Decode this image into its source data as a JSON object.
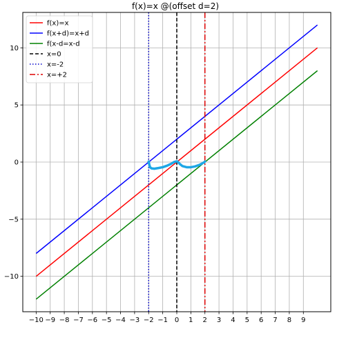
{
  "chart_data": {
    "type": "line",
    "title": "f(x)=x @(offset d=2)",
    "xlabel": "",
    "ylabel": "",
    "xlim": [
      -10.95,
      10.95
    ],
    "ylim": [
      -13.1,
      13.1
    ],
    "grid": true,
    "legend_position": "top-left",
    "xticks": [
      -10,
      -9,
      -8,
      -7,
      -6,
      -5,
      -4,
      -3,
      -2,
      -1,
      0,
      1,
      2,
      3,
      4,
      5,
      6,
      7,
      8,
      9
    ],
    "xtick_labels": [
      "−10",
      "−9",
      "−8",
      "−7",
      "−6",
      "−5",
      "−4",
      "−3",
      "−2",
      "−1",
      "0",
      "1",
      "2",
      "3",
      "4",
      "5",
      "6",
      "7",
      "8",
      "9"
    ],
    "yticks": [
      -10,
      -5,
      0,
      5,
      10
    ],
    "ytick_labels": [
      "−10",
      "−5",
      "0",
      "5",
      "10"
    ],
    "series": [
      {
        "name": "f(x)=x",
        "color": "#ff0000",
        "style": "solid",
        "x": [
          -10,
          10
        ],
        "y": [
          -10,
          10
        ]
      },
      {
        "name": "f(x+d)=x+d",
        "color": "#0000ff",
        "style": "solid",
        "x": [
          -10,
          10
        ],
        "y": [
          -8,
          12
        ]
      },
      {
        "name": "f(x-d=x-d",
        "color": "#008000",
        "style": "solid",
        "x": [
          -10,
          10
        ],
        "y": [
          -12,
          8
        ]
      }
    ],
    "vlines": [
      {
        "name": "x=0",
        "x": 0,
        "color": "#000000",
        "style": "dashed"
      },
      {
        "name": "x=-2",
        "x": -2,
        "color": "#0000cc",
        "style": "dotted"
      },
      {
        "name": "x=+2",
        "x": 2,
        "color": "#dd0000",
        "style": "dashdot"
      }
    ],
    "annotation_curve": {
      "color": "#1ea7e6",
      "x": [
        -2.0,
        -1.95,
        -1.9,
        -1.8,
        -1.6,
        -1.3,
        -1.0,
        -0.7,
        -0.4,
        -0.2,
        -0.05,
        0.05,
        0.2,
        0.4,
        0.7,
        1.0,
        1.3,
        1.6,
        1.8,
        1.95,
        2.0
      ],
      "y": [
        0.05,
        -0.25,
        -0.45,
        -0.55,
        -0.58,
        -0.52,
        -0.45,
        -0.32,
        -0.15,
        0.0,
        0.05,
        0.05,
        -0.15,
        -0.35,
        -0.45,
        -0.45,
        -0.38,
        -0.25,
        -0.12,
        -0.02,
        0.05
      ]
    }
  }
}
